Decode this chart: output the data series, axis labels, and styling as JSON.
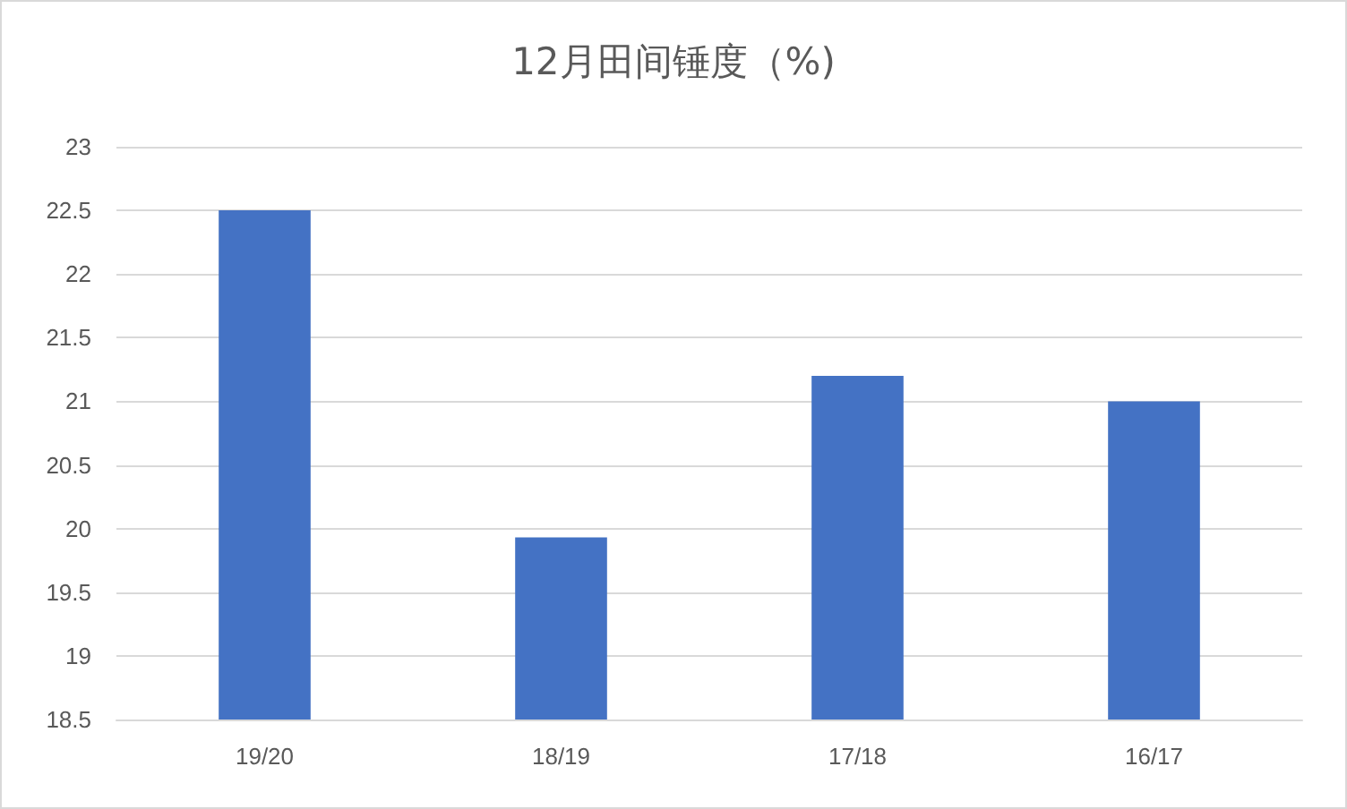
{
  "chart_data": {
    "type": "bar",
    "title": "12月田间锤度（%)",
    "categories": [
      "19/20",
      "18/19",
      "17/18",
      "16/17"
    ],
    "values": [
      22.5,
      19.93,
      21.2,
      21.0
    ],
    "color": "#4472c4",
    "ylim": [
      18.5,
      23
    ],
    "yticks": [
      18.5,
      19,
      19.5,
      20,
      20.5,
      21,
      21.5,
      22,
      22.5,
      23
    ],
    "grid": "y"
  }
}
